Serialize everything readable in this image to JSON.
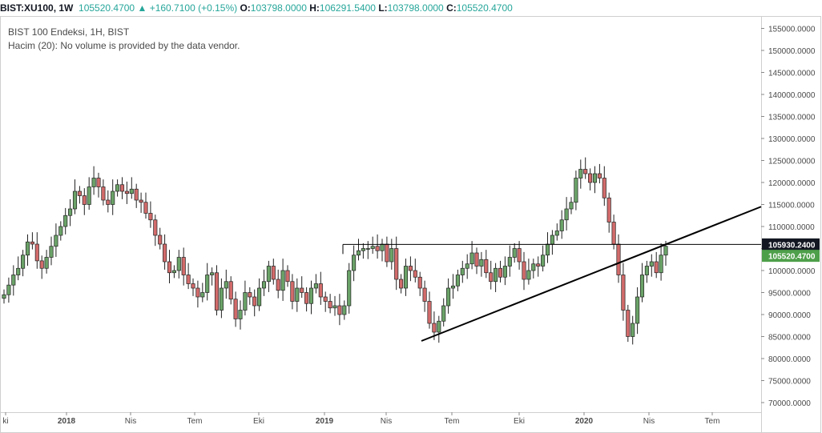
{
  "symbol_bar": {
    "ticker": "BIST:XU100, 1W",
    "last": "105520.4700",
    "change_arrow": "▲",
    "change": "+160.7100 (+0.15%)",
    "o_label": "O:",
    "o_value": "103798.0000",
    "h_label": "H:",
    "h_value": "106291.5400",
    "l_label": "L:",
    "l_value": "103798.0000",
    "c_label": "C:",
    "c_value": "105520.4700"
  },
  "legend": {
    "series": "BIST 100 Endeksi, 1H, BIST",
    "volume": "Hacim (20): No volume is provided by the data vendor."
  },
  "price_badges": {
    "resistance": "105930.2400",
    "last": "105520.4700"
  },
  "colors": {
    "up": "#6ba368",
    "down": "#d26b6b",
    "up_badge": "#4e9f4a",
    "resistance_badge": "#131722",
    "text": "#131722",
    "grid": "#d9d9d9"
  },
  "chart_data": {
    "type": "candlestick",
    "interval": "1W",
    "y_ticks": [
      "155000.0000",
      "150000.0000",
      "145000.0000",
      "140000.0000",
      "135000.0000",
      "130000.0000",
      "125000.0000",
      "120000.0000",
      "115000.0000",
      "110000.0000",
      "105000.0000",
      "100000.0000",
      "95000.0000",
      "90000.0000",
      "85000.0000",
      "80000.0000",
      "75000.0000",
      "70000.0000"
    ],
    "ylim": [
      66000,
      158000
    ],
    "x_tick_labels": [
      "ki",
      "2018",
      "Nis",
      "Tem",
      "Eki",
      "2019",
      "Nis",
      "Tem",
      "Eki",
      "2020",
      "Nis",
      "Tem"
    ],
    "closes": [
      94500,
      96700,
      99000,
      100500,
      103500,
      106500,
      106000,
      102200,
      100500,
      103000,
      105500,
      108000,
      110000,
      112500,
      114000,
      118000,
      117000,
      115000,
      119000,
      121000,
      119000,
      116000,
      115000,
      118000,
      119500,
      118000,
      117500,
      118500,
      116000,
      115500,
      113000,
      111500,
      108000,
      106000,
      102000,
      99500,
      100000,
      103000,
      99000,
      97000,
      96000,
      94000,
      95000,
      99000,
      99500,
      91000,
      96000,
      97500,
      93500,
      89000,
      91000,
      95000,
      94000,
      92000,
      96000,
      97500,
      101000,
      98000,
      95500,
      100000,
      97500,
      93000,
      96000,
      95000,
      92500,
      96000,
      97000,
      94000,
      93000,
      91500,
      92000,
      90000,
      92000,
      100000,
      103500,
      104500,
      105000,
      105000,
      105500,
      104500,
      106000,
      102000,
      105000,
      98000,
      96000,
      101000,
      100000,
      98500,
      96000,
      93000,
      88000,
      86000,
      88500,
      92000,
      96000,
      96500,
      99000,
      100500,
      101500,
      104000,
      101000,
      102500,
      99500,
      97500,
      100500,
      98500,
      101000,
      103000,
      105000,
      102000,
      98000,
      100000,
      101500,
      101000,
      103500,
      106000,
      108000,
      109000,
      111500,
      114000,
      115500,
      121000,
      123000,
      122000,
      120000,
      122000,
      121000,
      116500,
      111000,
      106000,
      99000,
      91000,
      85000,
      88000,
      94000,
      99000,
      101000,
      102000,
      99500,
      103500,
      105520
    ]
  },
  "annotations": {
    "resistance_level": 105930.24,
    "trendline": {
      "x1": "2019-07",
      "y1": 84000,
      "x2": "2020-07",
      "y2": 114500
    }
  }
}
